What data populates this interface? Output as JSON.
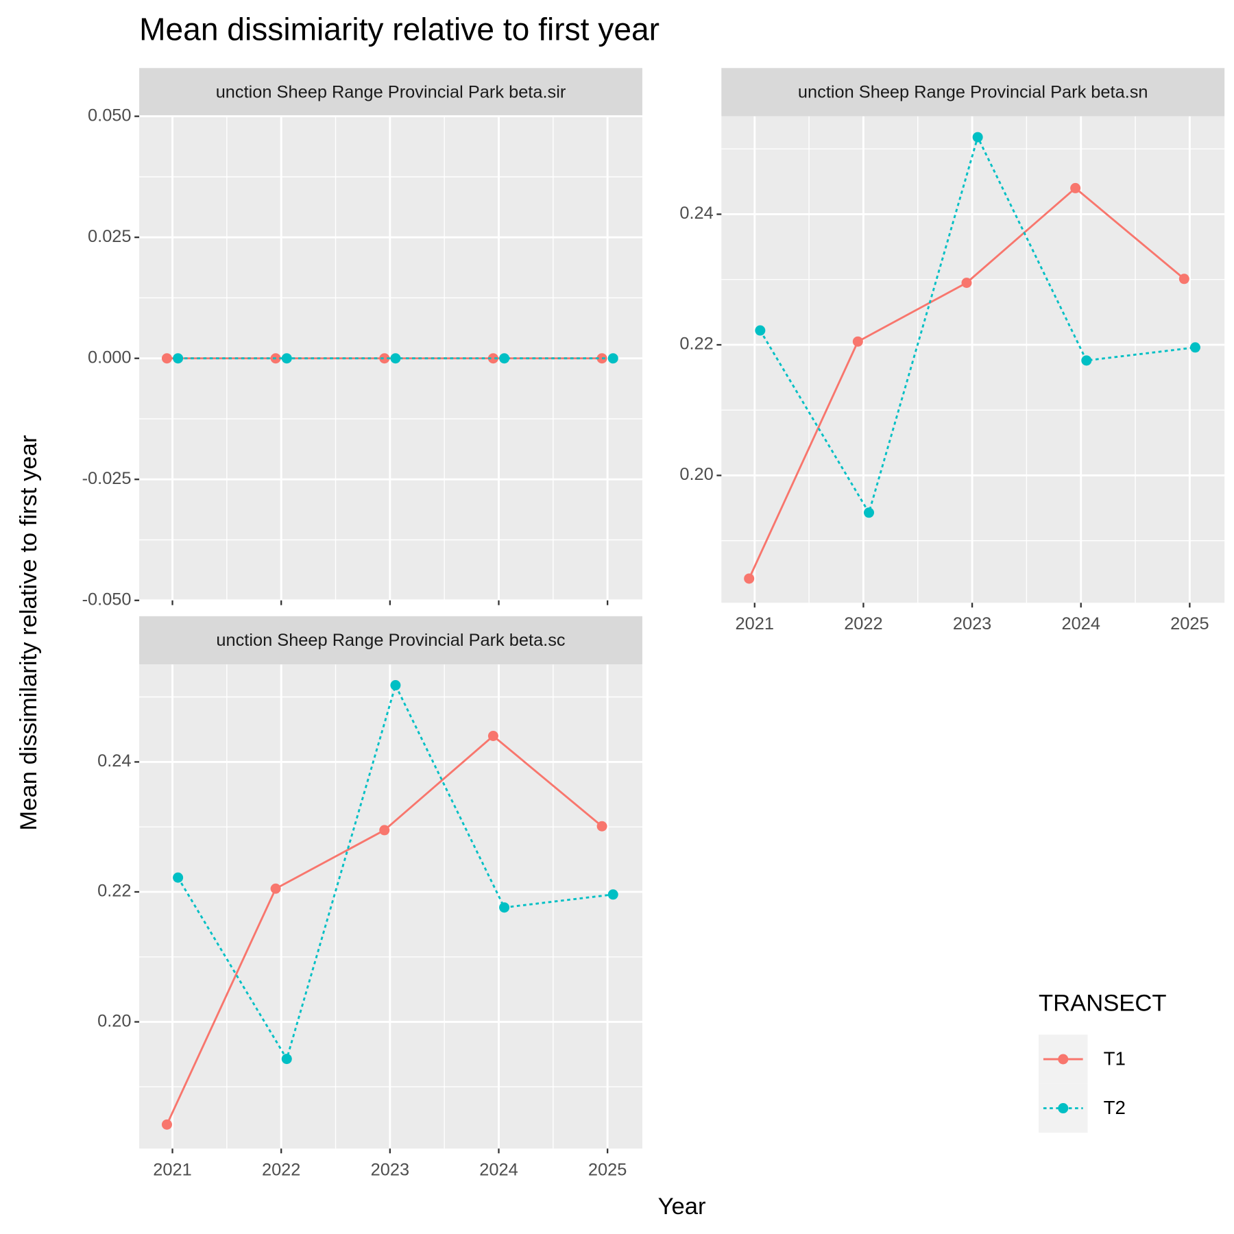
{
  "title": "Mean dissimiarity relative to first year",
  "ylabel": "Mean dissimilarity relative to first year",
  "xlabel": "Year",
  "legend_title": "TRANSECT",
  "chart_data": [
    {
      "type": "line",
      "title": "unction Sheep Range Provincial Park beta.sir",
      "categories": [
        "2021",
        "2022",
        "2023",
        "2024",
        "2025"
      ],
      "series": [
        {
          "name": "T1",
          "color": "#F8766D",
          "linestyle": "solid",
          "values": [
            0,
            0,
            0,
            0,
            0
          ]
        },
        {
          "name": "T2",
          "color": "#00BFC4",
          "linestyle": "dotted",
          "values": [
            0,
            0,
            0,
            0,
            0
          ]
        }
      ],
      "ylim": [
        -0.05,
        0.05
      ],
      "yticks": [
        {
          "value": -0.05,
          "label": "-0.050"
        },
        -0.025,
        {
          "value": 0,
          "label": "0.000"
        },
        0.025,
        {
          "value": 0.05,
          "label": "0.050"
        }
      ],
      "grid": true
    },
    {
      "type": "line",
      "title": "unction Sheep Range Provincial Park beta.sn",
      "categories": [
        "2021",
        "2022",
        "2023",
        "2024",
        "2025"
      ],
      "series": [
        {
          "name": "T1",
          "color": "#F8766D",
          "linestyle": "solid",
          "values": [
            0.1842,
            0.2205,
            0.2295,
            0.244,
            0.2301
          ]
        },
        {
          "name": "T2",
          "color": "#00BFC4",
          "linestyle": "dotted",
          "values": [
            0.2222,
            0.1943,
            0.2518,
            0.2176,
            0.2196
          ]
        }
      ],
      "ylim": [
        0.1805,
        0.255
      ],
      "yticks": [
        {
          "value": 0.2,
          "label": "0.20"
        },
        0.22,
        0.24
      ],
      "grid": true
    },
    {
      "type": "line",
      "title": "unction Sheep Range Provincial Park beta.sc",
      "categories": [
        "2021",
        "2022",
        "2023",
        "2024",
        "2025"
      ],
      "series": [
        {
          "name": "T1",
          "color": "#F8766D",
          "linestyle": "solid",
          "values": [
            0.1842,
            0.2205,
            0.2295,
            0.244,
            0.2301
          ]
        },
        {
          "name": "T2",
          "color": "#00BFC4",
          "linestyle": "dotted",
          "values": [
            0.2222,
            0.1943,
            0.2518,
            0.2176,
            0.2196
          ]
        }
      ],
      "ylim": [
        0.1805,
        0.255
      ],
      "yticks": [
        {
          "value": 0.2,
          "label": "0.20"
        },
        0.22,
        0.24
      ],
      "grid": true
    }
  ]
}
